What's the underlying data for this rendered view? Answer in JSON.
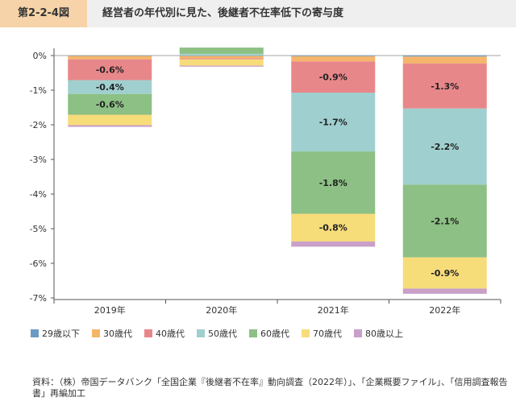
{
  "header": {
    "figure_label": "第2-2-4図",
    "title": "経営者の年代別に見た、後継者不在率低下の寄与度"
  },
  "chart_data": {
    "type": "bar",
    "stacked": true,
    "categories": [
      "2019年",
      "2020年",
      "2021年",
      "2022年"
    ],
    "series": [
      {
        "name": "29歳以下",
        "color": "#6b9ac4",
        "values": [
          -0.01,
          -0.01,
          -0.02,
          -0.03
        ]
      },
      {
        "name": "30歳代",
        "color": "#f5b56b",
        "values": [
          -0.1,
          -0.07,
          -0.15,
          -0.2
        ]
      },
      {
        "name": "40歳代",
        "color": "#e8878a",
        "values": [
          -0.6,
          -0.03,
          -0.9,
          -1.3
        ]
      },
      {
        "name": "50歳代",
        "color": "#9fd0cf",
        "values": [
          -0.4,
          0.05,
          -1.7,
          -2.2
        ]
      },
      {
        "name": "60歳代",
        "color": "#8cc084",
        "values": [
          -0.6,
          0.18,
          -1.8,
          -2.1
        ]
      },
      {
        "name": "70歳代",
        "color": "#f7dc7a",
        "values": [
          -0.3,
          -0.18,
          -0.8,
          -0.9
        ]
      },
      {
        "name": "80歳以上",
        "color": "#c9a0c8",
        "values": [
          -0.05,
          -0.03,
          -0.15,
          -0.15
        ]
      }
    ],
    "data_labels": [
      {
        "category": "2019年",
        "series": "60歳代",
        "text": "-0.6%"
      },
      {
        "category": "2019年",
        "series": "50歳代",
        "text": "-0.4%"
      },
      {
        "category": "2019年",
        "series": "40歳代",
        "text": "-0.6%"
      },
      {
        "category": "2021年",
        "series": "70歳代",
        "text": "-0.8%"
      },
      {
        "category": "2021年",
        "series": "60歳代",
        "text": "-1.8%"
      },
      {
        "category": "2021年",
        "series": "50歳代",
        "text": "-1.7%"
      },
      {
        "category": "2021年",
        "series": "40歳代",
        "text": "-0.9%"
      },
      {
        "category": "2022年",
        "series": "70歳代",
        "text": "-0.9%"
      },
      {
        "category": "2022年",
        "series": "60歳代",
        "text": "-2.1%"
      },
      {
        "category": "2022年",
        "series": "50歳代",
        "text": "-2.2%"
      },
      {
        "category": "2022年",
        "series": "40歳代",
        "text": "-1.3%"
      }
    ],
    "y_ticks": [
      0,
      -1,
      -2,
      -3,
      -4,
      -5,
      -6,
      -7
    ],
    "y_tick_labels": [
      "0%",
      "-1%",
      "-2%",
      "-3%",
      "-4%",
      "-5%",
      "-6%",
      "-7%"
    ],
    "ylim": [
      -7,
      0.3
    ],
    "grid": false,
    "legend_position": "bottom"
  },
  "source_text": "資料：（株）帝国データバンク「全国企業『後継者不在率』動向調査（2022年）」、「企業概要ファイル」、「信用調査報告書」再編加工"
}
